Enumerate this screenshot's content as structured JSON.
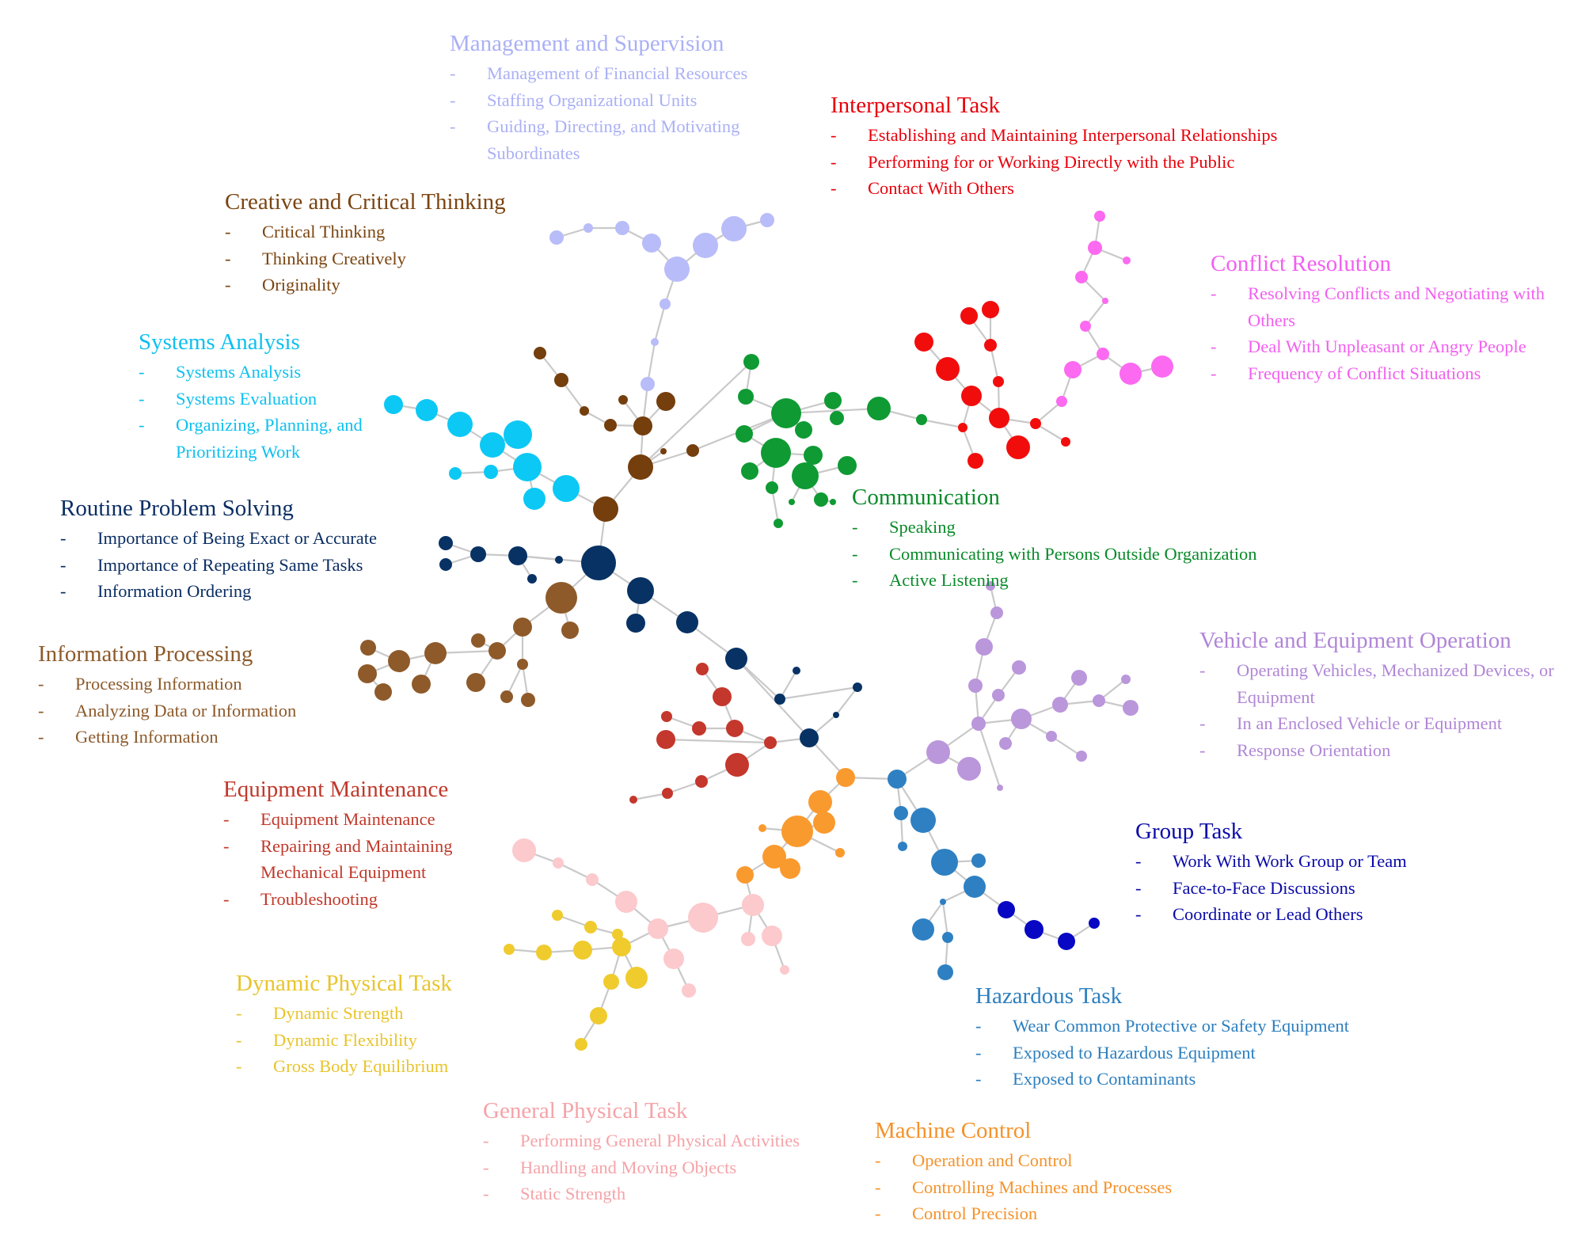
{
  "clusters": [
    {
      "id": "management",
      "title": "Management and Supervision",
      "color": "#aab0f5",
      "items": [
        "Management of Financial Resources",
        "Staffing Organizational Units",
        "Guiding, Directing, and Motivating Subordinates"
      ]
    },
    {
      "id": "interpersonal",
      "title": "Interpersonal Task",
      "color": "#e8000b",
      "items": [
        "Establishing and Maintaining Interpersonal Relationships",
        "Performing for or Working Directly with the Public",
        "Contact With Others"
      ]
    },
    {
      "id": "creative",
      "title": "Creative and Critical Thinking",
      "color": "#7b4511",
      "items": [
        "Critical Thinking",
        "Thinking Creatively",
        "Originality"
      ]
    },
    {
      "id": "conflict",
      "title": "Conflict Resolution",
      "color": "#f25ff0",
      "items": [
        "Resolving Conflicts and Negotiating with Others",
        "Deal With Unpleasant or Angry People",
        "Frequency of Conflict Situations"
      ]
    },
    {
      "id": "systems",
      "title": "Systems Analysis",
      "color": "#0ec0ef",
      "items": [
        "Systems Analysis",
        "Systems Evaluation",
        "Organizing, Planning, and Prioritizing Work"
      ]
    },
    {
      "id": "routine",
      "title": "Routine Problem Solving",
      "color": "#0b2e63",
      "items": [
        "Importance of Being Exact or Accurate",
        "Importance of Repeating Same Tasks",
        "Information Ordering"
      ]
    },
    {
      "id": "communication",
      "title": "Communication",
      "color": "#0a8a2a",
      "items": [
        "Speaking",
        "Communicating with Persons Outside Organization",
        "Active Listening"
      ]
    },
    {
      "id": "infoproc",
      "title": "Information Processing",
      "color": "#8c5a2b",
      "items": [
        "Processing Information",
        "Analyzing Data or Information",
        "Getting Information"
      ]
    },
    {
      "id": "vehicle",
      "title": "Vehicle and Equipment Operation",
      "color": "#b086d6",
      "items": [
        "Operating Vehicles, Mechanized Devices, or Equipment",
        "In an Enclosed Vehicle or Equipment",
        "Response Orientation"
      ]
    },
    {
      "id": "equipment",
      "title": "Equipment Maintenance",
      "color": "#c0392b",
      "items": [
        "Equipment Maintenance",
        "Repairing and Maintaining Mechanical Equipment",
        "Troubleshooting"
      ]
    },
    {
      "id": "group",
      "title": "Group Task",
      "color": "#0a0aa8",
      "items": [
        "Work With Work Group or Team",
        "Face-to-Face Discussions",
        "Coordinate or Lead Others"
      ]
    },
    {
      "id": "dynamic",
      "title": "Dynamic Physical Task",
      "color": "#e8c42c",
      "items": [
        "Dynamic Strength",
        "Dynamic Flexibility",
        "Gross Body Equilibrium"
      ]
    },
    {
      "id": "hazardous",
      "title": "Hazardous Task",
      "color": "#2c7fbf",
      "items": [
        "Wear Common Protective or Safety Equipment",
        "Exposed to Hazardous Equipment",
        "Exposed to Contaminants"
      ]
    },
    {
      "id": "general",
      "title": "General Physical Task",
      "color": "#f5a3a8",
      "items": [
        "Performing General Physical Activities",
        "Handling and Moving Objects",
        "Static Strength"
      ]
    },
    {
      "id": "machine",
      "title": "Machine Control",
      "color": "#f5922a",
      "items": [
        "Operation and Control",
        "Controlling Machines and Processes",
        "Control Precision"
      ]
    }
  ],
  "node_colors": {
    "management": "#b8bcf8",
    "interpersonal": "#f20d0d",
    "creative": "#743e0d",
    "conflict": "#fb6af0",
    "systems": "#0cc8f5",
    "routine": "#083264",
    "communication": "#0f9a33",
    "infoproc": "#8e5a2a",
    "vehicle": "#ba96db",
    "equipment": "#c4372c",
    "group": "#0707c4",
    "dynamic": "#efcb2e",
    "hazardous": "#2e80c2",
    "general": "#fcc9cc",
    "machine": "#f99a2f"
  }
}
